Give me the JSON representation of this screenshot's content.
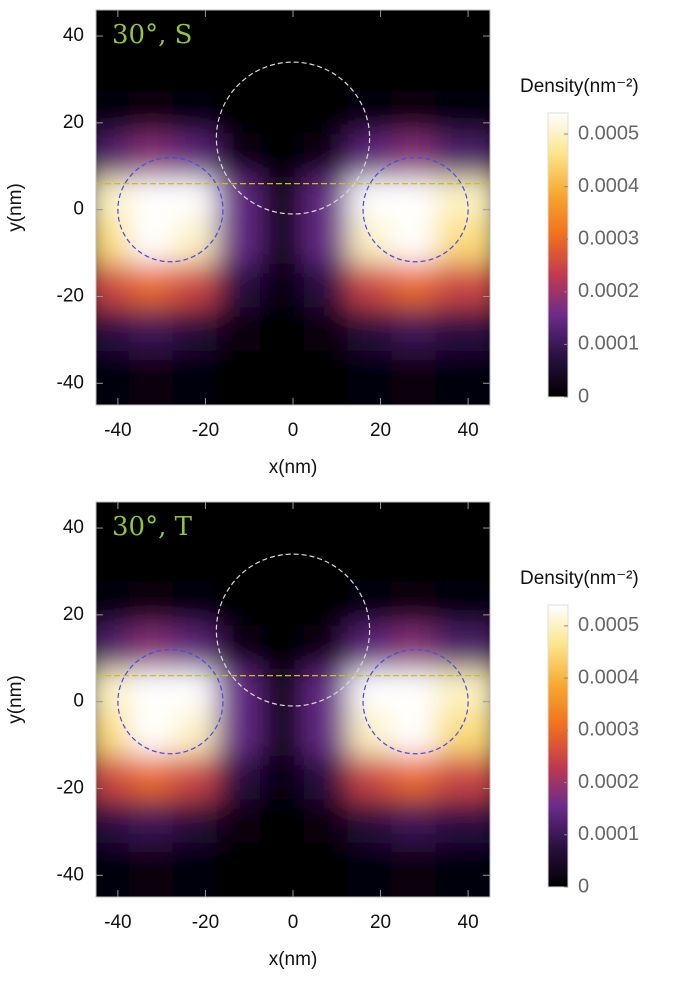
{
  "chart_data": [
    {
      "type": "heatmap",
      "annotation": "30°, S",
      "annotation_color": "#8dc63f",
      "x_label": "x(nm)",
      "y_label": "y(nm)",
      "xlim": [
        -45,
        45
      ],
      "ylim": [
        -45,
        46
      ],
      "xticks": [
        -40,
        -20,
        0,
        20,
        40
      ],
      "yticks": [
        -40,
        -20,
        0,
        20,
        40
      ],
      "colorbar_label": "Density(nm⁻²)",
      "zlim": [
        0,
        0.00054
      ],
      "zticks": [
        0,
        0.0001,
        0.0002,
        0.0003,
        0.0004,
        0.0005
      ],
      "colormap": [
        "#000000",
        "#2a1040",
        "#6a2c8a",
        "#c03a50",
        "#f07020",
        "#f7a830",
        "#fbe58a",
        "#ffffff"
      ],
      "x": [
        -40,
        -30,
        -20,
        -10,
        0,
        10,
        20,
        30,
        40
      ],
      "y": [
        40,
        30,
        20,
        10,
        0,
        -10,
        -20,
        -30,
        -40
      ],
      "z": [
        [
          0,
          0,
          0,
          0,
          0,
          0,
          0,
          0,
          0
        ],
        [
          0,
          0,
          0,
          0,
          0,
          0,
          0,
          0,
          0
        ],
        [
          1e-05,
          2e-05,
          1e-05,
          0,
          0,
          0,
          1e-05,
          2e-05,
          1e-05
        ],
        [
          0.00012,
          0.00018,
          0.00014,
          3e-05,
          0,
          3e-05,
          0.00014,
          0.00018,
          0.00012
        ],
        [
          0.0005,
          0.00055,
          0.00055,
          0.00015,
          2e-05,
          0.00015,
          0.00055,
          0.00055,
          0.0005
        ],
        [
          0.00045,
          0.00055,
          0.0005,
          0.00015,
          3e-05,
          0.00015,
          0.0005,
          0.00055,
          0.00045
        ],
        [
          0.00025,
          0.0003,
          0.00025,
          8e-05,
          1e-05,
          8e-05,
          0.00025,
          0.0003,
          0.00025
        ],
        [
          8e-05,
          0.0001,
          7e-05,
          2e-05,
          0,
          2e-05,
          7e-05,
          0.0001,
          8e-05
        ],
        [
          1e-05,
          2e-05,
          1e-05,
          0,
          0,
          0,
          1e-05,
          2e-05,
          1e-05
        ]
      ],
      "circles": [
        {
          "cx": -28,
          "cy": 0,
          "r": 12,
          "color": "#4a4ae0"
        },
        {
          "cx": 28,
          "cy": 0,
          "r": 12,
          "color": "#4a4ae0"
        },
        {
          "cx": 0,
          "cy": 16.5,
          "r": 17.5,
          "color": "#d8d8d8"
        }
      ],
      "hline": {
        "y": 6,
        "color": "#c8c020"
      }
    },
    {
      "type": "heatmap",
      "annotation": "30°, T",
      "annotation_color": "#8dc63f",
      "x_label": "x(nm)",
      "y_label": "y(nm)",
      "xlim": [
        -45,
        45
      ],
      "ylim": [
        -45,
        46
      ],
      "xticks": [
        -40,
        -20,
        0,
        20,
        40
      ],
      "yticks": [
        -40,
        -20,
        0,
        20,
        40
      ],
      "colorbar_label": "Density(nm⁻²)",
      "zlim": [
        0,
        0.00054
      ],
      "zticks": [
        0,
        0.0001,
        0.0002,
        0.0003,
        0.0004,
        0.0005
      ],
      "colormap": [
        "#000000",
        "#2a1040",
        "#6a2c8a",
        "#c03a50",
        "#f07020",
        "#f7a830",
        "#fbe58a",
        "#ffffff"
      ],
      "x": [
        -40,
        -30,
        -20,
        -10,
        0,
        10,
        20,
        30,
        40
      ],
      "y": [
        40,
        30,
        20,
        10,
        0,
        -10,
        -20,
        -30,
        -40
      ],
      "z": [
        [
          0,
          0,
          0,
          0,
          0,
          0,
          0,
          0,
          0
        ],
        [
          0,
          0,
          0,
          0,
          0,
          0,
          0,
          0,
          0
        ],
        [
          1e-05,
          2e-05,
          1e-05,
          0,
          0,
          0,
          1e-05,
          2e-05,
          1e-05
        ],
        [
          0.00012,
          0.00018,
          0.00014,
          3e-05,
          0,
          3e-05,
          0.00014,
          0.00018,
          0.00012
        ],
        [
          0.0005,
          0.00055,
          0.00055,
          0.00015,
          2e-05,
          0.00015,
          0.00055,
          0.00055,
          0.0005
        ],
        [
          0.00045,
          0.00055,
          0.0005,
          0.00015,
          3e-05,
          0.00015,
          0.0005,
          0.00055,
          0.00045
        ],
        [
          0.00025,
          0.0003,
          0.00025,
          8e-05,
          1e-05,
          8e-05,
          0.00025,
          0.0003,
          0.00025
        ],
        [
          8e-05,
          0.0001,
          7e-05,
          2e-05,
          0,
          2e-05,
          7e-05,
          0.0001,
          8e-05
        ],
        [
          1e-05,
          2e-05,
          1e-05,
          0,
          0,
          0,
          1e-05,
          2e-05,
          1e-05
        ]
      ],
      "circles": [
        {
          "cx": -28,
          "cy": 0,
          "r": 12,
          "color": "#4a4ae0"
        },
        {
          "cx": 28,
          "cy": 0,
          "r": 12,
          "color": "#4a4ae0"
        },
        {
          "cx": 0,
          "cy": 16.5,
          "r": 17.5,
          "color": "#d8d8d8"
        }
      ],
      "hline": {
        "y": 6,
        "color": "#c8c020"
      }
    }
  ]
}
